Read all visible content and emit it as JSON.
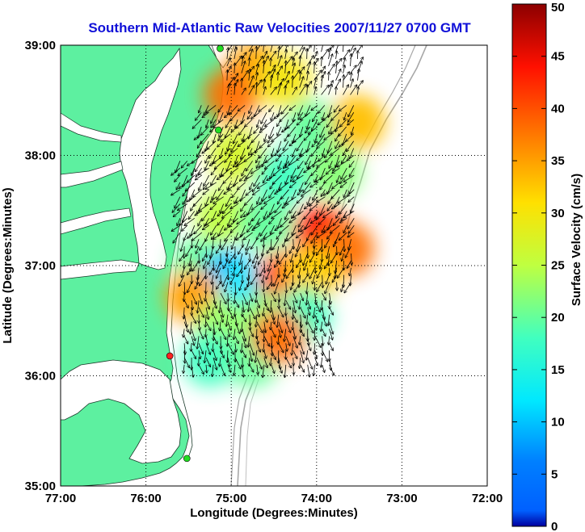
{
  "chart_data": {
    "type": "map",
    "title": "Southern Mid-Atlantic Raw Velocities 2007/11/27 0700 GMT",
    "xlabel": "Longitude (Degrees:Minutes)",
    "ylabel": "Latitude (Degrees:Minutes)",
    "xlim": [
      -77,
      -72
    ],
    "ylim": [
      35,
      39
    ],
    "x_ticks": [
      {
        "value": -77,
        "label": "77:00"
      },
      {
        "value": -76,
        "label": "76:00"
      },
      {
        "value": -75,
        "label": "75:00"
      },
      {
        "value": -74,
        "label": "74:00"
      },
      {
        "value": -73,
        "label": "73:00"
      },
      {
        "value": -72,
        "label": "72:00"
      }
    ],
    "y_ticks": [
      {
        "value": 35,
        "label": "35:00"
      },
      {
        "value": 36,
        "label": "36:00"
      },
      {
        "value": 37,
        "label": "37:00"
      },
      {
        "value": 38,
        "label": "38:00"
      },
      {
        "value": 39,
        "label": "39:00"
      }
    ],
    "grid": "dotted",
    "colorbar": {
      "label": "Surface Velocity (cm/s)",
      "range": [
        0,
        50
      ],
      "ticks": [
        "0",
        "5",
        "10",
        "15",
        "20",
        "25",
        "30",
        "35",
        "40",
        "45",
        "50"
      ],
      "colormap": "jet"
    },
    "radar_sites": [
      {
        "lon": -75.13,
        "lat": 38.97,
        "color": "#22dd22"
      },
      {
        "lon": -75.15,
        "lat": 38.23,
        "color": "#22dd22"
      },
      {
        "lon": -75.72,
        "lat": 36.18,
        "color": "#ff2222"
      },
      {
        "lon": -75.52,
        "lat": 35.25,
        "color": "#22dd22"
      }
    ],
    "speed_field": [
      {
        "lon": -74.72,
        "lat": 38.78,
        "speed": 35
      },
      {
        "lon": -74.38,
        "lat": 38.68,
        "speed": 30
      },
      {
        "lon": -75.0,
        "lat": 38.55,
        "speed": 38
      },
      {
        "lon": -74.05,
        "lat": 38.25,
        "speed": 20
      },
      {
        "lon": -73.52,
        "lat": 38.3,
        "speed": 33
      },
      {
        "lon": -74.95,
        "lat": 38.0,
        "speed": 27
      },
      {
        "lon": -74.4,
        "lat": 37.8,
        "speed": 18
      },
      {
        "lon": -73.8,
        "lat": 37.85,
        "speed": 22
      },
      {
        "lon": -75.1,
        "lat": 37.45,
        "speed": 25
      },
      {
        "lon": -74.6,
        "lat": 37.38,
        "speed": 20
      },
      {
        "lon": -73.95,
        "lat": 37.3,
        "speed": 44
      },
      {
        "lon": -73.65,
        "lat": 37.15,
        "speed": 38
      },
      {
        "lon": -75.38,
        "lat": 37.0,
        "speed": 20
      },
      {
        "lon": -75.05,
        "lat": 36.9,
        "speed": 8
      },
      {
        "lon": -74.82,
        "lat": 36.8,
        "speed": 12
      },
      {
        "lon": -74.38,
        "lat": 36.88,
        "speed": 40
      },
      {
        "lon": -74.05,
        "lat": 36.92,
        "speed": 32
      },
      {
        "lon": -75.45,
        "lat": 36.72,
        "speed": 35
      },
      {
        "lon": -75.1,
        "lat": 36.45,
        "speed": 23
      },
      {
        "lon": -74.6,
        "lat": 36.5,
        "speed": 22
      },
      {
        "lon": -74.15,
        "lat": 36.55,
        "speed": 18
      },
      {
        "lon": -75.25,
        "lat": 36.15,
        "speed": 18
      },
      {
        "lon": -74.75,
        "lat": 36.15,
        "speed": 20
      },
      {
        "lon": -74.45,
        "lat": 36.35,
        "speed": 38
      }
    ],
    "vectors": [
      {
        "lat_range": [
          38.55,
          38.95
        ],
        "lon_range": [
          -75.05,
          -73.45
        ],
        "direction_deg": 20
      },
      {
        "lat_range": [
          38.0,
          38.5
        ],
        "lon_range": [
          -75.35,
          -73.5
        ],
        "direction_deg": 215
      },
      {
        "lat_range": [
          37.3,
          37.95
        ],
        "lon_range": [
          -75.6,
          -73.5
        ],
        "direction_deg": 220
      },
      {
        "lat_range": [
          36.85,
          37.25
        ],
        "lon_range": [
          -75.55,
          -73.55
        ],
        "direction_deg": 195
      },
      {
        "lat_range": [
          36.1,
          36.8
        ],
        "lon_range": [
          -75.55,
          -73.8
        ],
        "direction_deg": 170
      }
    ]
  }
}
